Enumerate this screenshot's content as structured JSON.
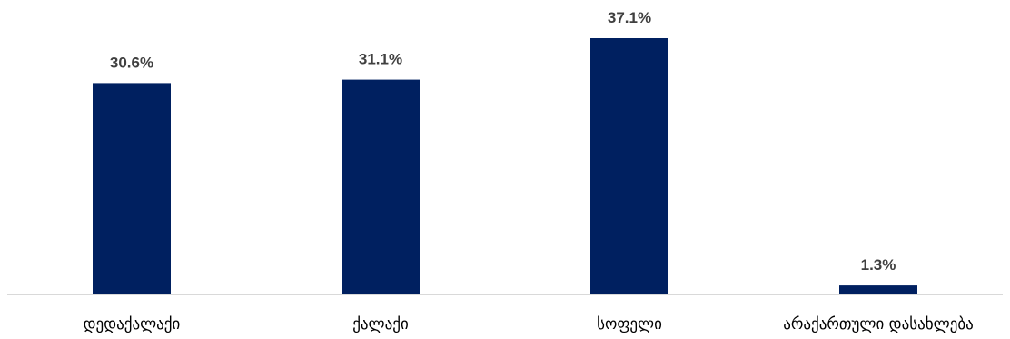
{
  "chart_data": {
    "type": "bar",
    "title": "",
    "xlabel": "",
    "ylabel": "",
    "categories": [
      "დედაქალაქი",
      "ქალაქი",
      "სოფელი",
      "არაქართული დასახლება"
    ],
    "values": [
      30.6,
      31.1,
      37.1,
      1.3
    ],
    "value_labels": [
      "30.6%",
      "31.1%",
      "37.1%",
      "1.3%"
    ],
    "unit": "%",
    "ylim": [
      0,
      37.1
    ],
    "grid": false,
    "legend": "none",
    "bar_color": "#002060"
  }
}
